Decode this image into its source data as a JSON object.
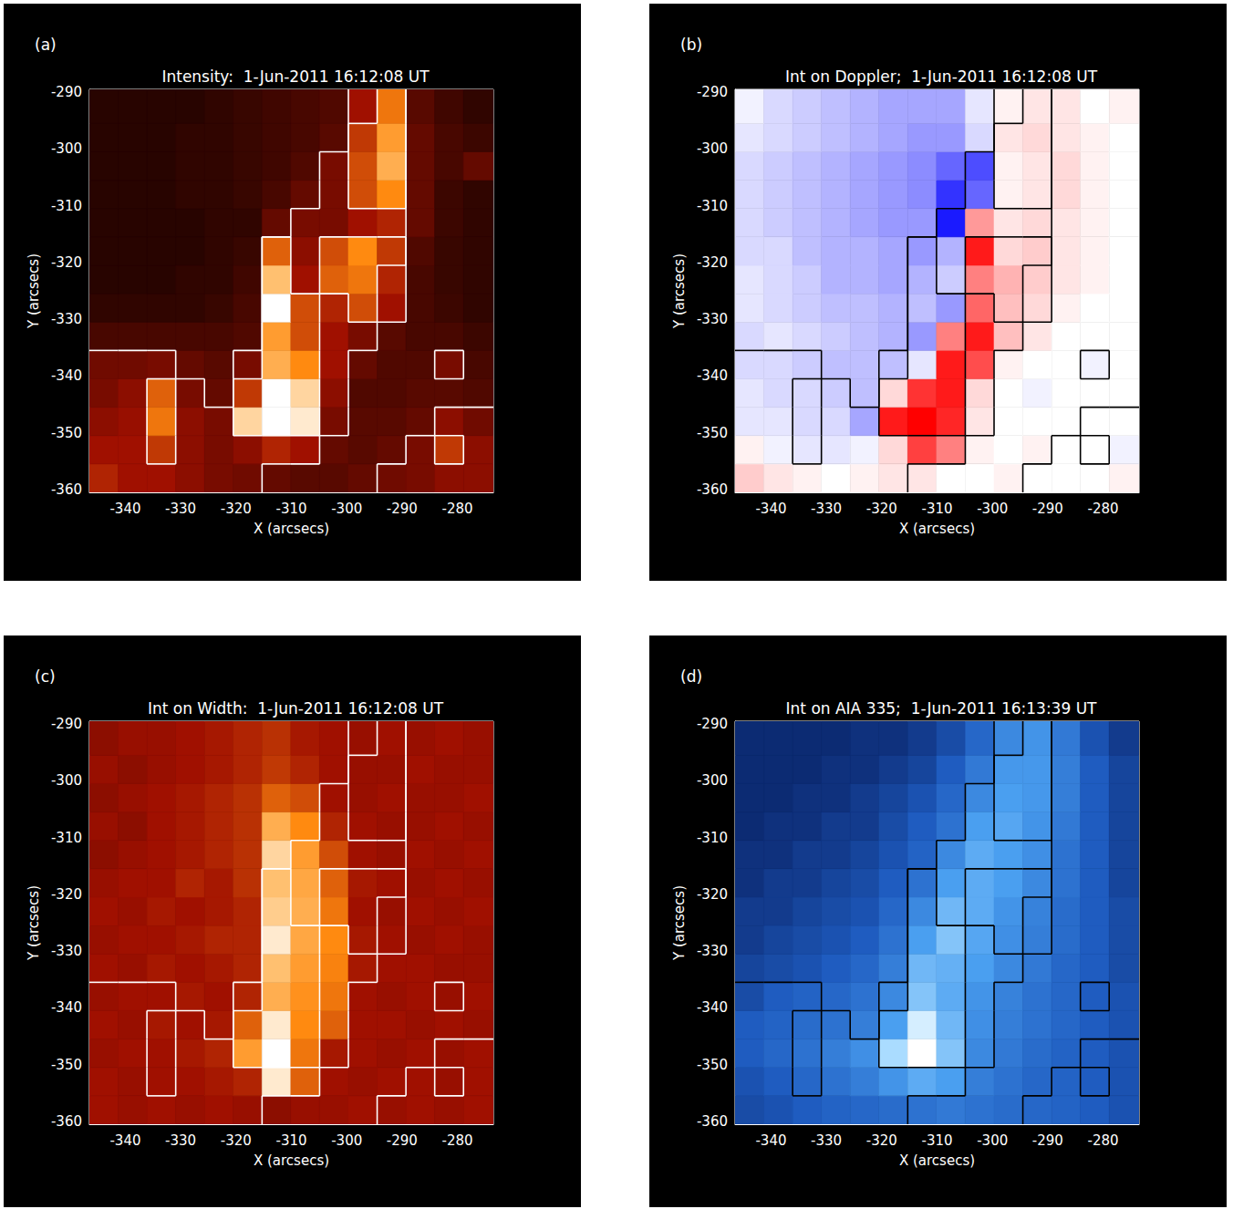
{
  "chart_data": [
    {
      "type": "heatmap",
      "panel": "(a)",
      "title": "Intensity:  1-Jun-2011 16:12:08 UT",
      "x_label": "X (arcsecs)",
      "y_label": "Y (arcsecs)",
      "color": "red temperature",
      "xlim": [
        -346.5,
        -273.5
      ],
      "ylim": [
        -360.5,
        -289.5
      ],
      "xticks": [
        -340,
        -330,
        -320,
        -310,
        -300,
        -290,
        -280
      ],
      "yticks": [
        -360,
        -350,
        -340,
        -330,
        -320,
        -310,
        -300,
        -290
      ],
      "x_edges": [
        -346.5,
        -341.3,
        -336.1,
        -330.9,
        -325.7,
        -320.5,
        -315.3,
        -310.1,
        -304.9,
        -299.7,
        -294.5,
        -289.3,
        -284.1,
        -278.9,
        -273.5
      ],
      "y_edges": [
        -360.5,
        -355.5,
        -350.5,
        -345.5,
        -340.5,
        -335.5,
        -330.5,
        -325.5,
        -320.5,
        -315.5,
        -310.5,
        -305.5,
        -300.5,
        -295.5,
        -289.5
      ],
      "color_range": [
        0,
        100
      ],
      "contour_levels": [
        28,
        50
      ],
      "cells": [
        [
          45,
          40,
          40,
          35,
          30,
          28,
          25,
          22,
          22,
          25,
          28,
          30,
          35,
          35
        ],
        [
          40,
          40,
          50,
          35,
          30,
          35,
          45,
          40,
          25,
          22,
          25,
          30,
          50,
          35
        ],
        [
          35,
          38,
          65,
          35,
          30,
          90,
          100,
          95,
          30,
          22,
          22,
          25,
          35,
          28
        ],
        [
          30,
          35,
          60,
          30,
          25,
          50,
          100,
          90,
          35,
          20,
          20,
          22,
          22,
          20
        ],
        [
          28,
          28,
          30,
          25,
          22,
          30,
          80,
          70,
          40,
          25,
          20,
          20,
          30,
          18
        ],
        [
          18,
          18,
          18,
          18,
          18,
          20,
          75,
          55,
          40,
          30,
          22,
          18,
          18,
          15
        ],
        [
          12,
          12,
          12,
          12,
          14,
          18,
          100,
          55,
          45,
          55,
          40,
          18,
          15,
          12
        ],
        [
          10,
          10,
          10,
          12,
          12,
          16,
          85,
          40,
          60,
          65,
          45,
          18,
          14,
          12
        ],
        [
          10,
          10,
          10,
          10,
          12,
          14,
          60,
          35,
          55,
          70,
          50,
          20,
          14,
          12
        ],
        [
          10,
          10,
          10,
          10,
          12,
          12,
          25,
          30,
          30,
          40,
          45,
          25,
          15,
          12
        ],
        [
          10,
          10,
          10,
          12,
          12,
          14,
          18,
          25,
          30,
          55,
          70,
          25,
          15,
          12
        ],
        [
          10,
          10,
          10,
          12,
          12,
          14,
          16,
          20,
          30,
          55,
          80,
          25,
          18,
          25
        ],
        [
          10,
          10,
          10,
          12,
          12,
          14,
          16,
          18,
          22,
          50,
          75,
          25,
          18,
          15
        ],
        [
          10,
          10,
          10,
          10,
          12,
          14,
          16,
          18,
          20,
          40,
          65,
          22,
          16,
          12
        ]
      ]
    },
    {
      "type": "heatmap",
      "panel": "(b)",
      "title": "Int on Doppler;  1-Jun-2011 16:12:08 UT",
      "x_label": "X (arcsecs)",
      "y_label": "Y (arcsecs)",
      "color": "blue-white-red",
      "xlim": [
        -346.5,
        -273.5
      ],
      "ylim": [
        -360.5,
        -289.5
      ],
      "xticks": [
        -340,
        -330,
        -320,
        -310,
        -300,
        -290,
        -280
      ],
      "yticks": [
        -360,
        -350,
        -340,
        -330,
        -320,
        -310,
        -300,
        -290
      ],
      "x_edges": [
        -346.5,
        -341.3,
        -336.1,
        -330.9,
        -325.7,
        -320.5,
        -315.3,
        -310.1,
        -304.9,
        -299.7,
        -294.5,
        -289.3,
        -284.1,
        -278.9,
        -273.5
      ],
      "y_edges": [
        -360.5,
        -355.5,
        -350.5,
        -345.5,
        -340.5,
        -335.5,
        -330.5,
        -325.5,
        -320.5,
        -315.5,
        -310.5,
        -305.5,
        -300.5,
        -295.5,
        -289.5
      ],
      "color_range": [
        -20,
        20
      ],
      "contour_levels": [
        28,
        50
      ],
      "cells": [
        [
          4,
          2,
          1,
          0,
          1,
          2,
          2,
          0,
          0,
          1,
          0,
          0,
          0,
          1
        ],
        [
          1,
          -1,
          -2,
          -2,
          -1,
          3,
          15,
          10,
          1,
          0,
          1,
          0,
          0,
          -1
        ],
        [
          -2,
          -2,
          -3,
          -3,
          -7,
          18,
          20,
          17,
          2,
          0,
          0,
          0,
          0,
          0
        ],
        [
          -2,
          -3,
          -3,
          -4,
          -5,
          3,
          16,
          18,
          3,
          0,
          -1,
          0,
          0,
          0
        ],
        [
          -3,
          -3,
          -4,
          -5,
          -5,
          -5,
          -2,
          18,
          14,
          1,
          0,
          0,
          -1,
          0
        ],
        [
          -3,
          -2,
          -3,
          -4,
          -5,
          -6,
          -8,
          10,
          18,
          5,
          2,
          0,
          0,
          0
        ],
        [
          -2,
          -3,
          -4,
          -5,
          -5,
          -6,
          -5,
          -8,
          12,
          5,
          3,
          1,
          0,
          0
        ],
        [
          -2,
          -3,
          -4,
          -6,
          -6,
          -7,
          -6,
          -4,
          10,
          6,
          4,
          2,
          1,
          0
        ],
        [
          -3,
          -3,
          -5,
          -6,
          -6,
          -7,
          -8,
          -6,
          18,
          3,
          4,
          2,
          1,
          0
        ],
        [
          -3,
          -4,
          -5,
          -6,
          -7,
          -8,
          -8,
          -18,
          8,
          2,
          3,
          2,
          1,
          0
        ],
        [
          -3,
          -4,
          -5,
          -6,
          -7,
          -8,
          -9,
          -16,
          -12,
          1,
          2,
          3,
          1,
          0
        ],
        [
          -3,
          -4,
          -5,
          -6,
          -7,
          -8,
          -9,
          -12,
          -14,
          1,
          2,
          3,
          1,
          0
        ],
        [
          -2,
          -3,
          -4,
          -5,
          -6,
          -7,
          -8,
          -8,
          -3,
          2,
          3,
          2,
          1,
          0
        ],
        [
          -1,
          -3,
          -4,
          -5,
          -6,
          -7,
          -7,
          -7,
          -2,
          1,
          2,
          2,
          0,
          1
        ]
      ]
    },
    {
      "type": "heatmap",
      "panel": "(c)",
      "title": "Int on Width:  1-Jun-2011 16:12:08 UT",
      "x_label": "X (arcsecs)",
      "y_label": "Y (arcsecs)",
      "color": "red temperature",
      "xlim": [
        -346.5,
        -273.5
      ],
      "ylim": [
        -360.5,
        -289.5
      ],
      "xticks": [
        -340,
        -330,
        -320,
        -310,
        -300,
        -290,
        -280
      ],
      "yticks": [
        -360,
        -350,
        -340,
        -330,
        -320,
        -310,
        -300,
        -290
      ],
      "x_edges": [
        -346.5,
        -341.3,
        -336.1,
        -330.9,
        -325.7,
        -320.5,
        -315.3,
        -310.1,
        -304.9,
        -299.7,
        -294.5,
        -289.3,
        -284.1,
        -278.9,
        -273.5
      ],
      "y_edges": [
        -360.5,
        -355.5,
        -350.5,
        -345.5,
        -340.5,
        -335.5,
        -330.5,
        -325.5,
        -320.5,
        -315.5,
        -310.5,
        -305.5,
        -300.5,
        -295.5,
        -289.5
      ],
      "color_range": [
        0,
        100
      ],
      "contour_levels": [
        28,
        50
      ],
      "cells": [
        [
          40,
          38,
          40,
          38,
          40,
          38,
          35,
          38,
          38,
          40,
          38,
          40,
          38,
          40
        ],
        [
          40,
          38,
          40,
          40,
          42,
          45,
          95,
          60,
          40,
          38,
          40,
          40,
          38,
          40
        ],
        [
          38,
          40,
          40,
          42,
          45,
          75,
          100,
          65,
          42,
          40,
          38,
          40,
          38,
          40
        ],
        [
          40,
          38,
          42,
          40,
          42,
          60,
          95,
          70,
          60,
          40,
          40,
          38,
          40,
          38
        ],
        [
          38,
          40,
          40,
          42,
          40,
          45,
          80,
          72,
          65,
          40,
          38,
          40,
          38,
          40
        ],
        [
          40,
          38,
          42,
          40,
          42,
          45,
          85,
          75,
          68,
          42,
          40,
          40,
          38,
          38
        ],
        [
          38,
          40,
          40,
          42,
          45,
          45,
          95,
          78,
          70,
          42,
          40,
          38,
          40,
          38
        ],
        [
          40,
          38,
          42,
          40,
          42,
          45,
          88,
          80,
          65,
          40,
          38,
          40,
          38,
          40
        ],
        [
          38,
          40,
          40,
          45,
          42,
          48,
          85,
          78,
          60,
          42,
          40,
          38,
          40,
          38
        ],
        [
          35,
          38,
          40,
          42,
          45,
          48,
          90,
          75,
          55,
          40,
          38,
          40,
          38,
          40
        ],
        [
          38,
          35,
          40,
          42,
          45,
          48,
          80,
          70,
          45,
          40,
          38,
          38,
          40,
          38
        ],
        [
          35,
          38,
          40,
          42,
          45,
          48,
          60,
          55,
          40,
          38,
          40,
          38,
          38,
          40
        ],
        [
          38,
          35,
          38,
          40,
          42,
          45,
          50,
          45,
          40,
          38,
          38,
          40,
          38,
          38
        ],
        [
          35,
          38,
          38,
          40,
          42,
          45,
          48,
          42,
          40,
          38,
          40,
          38,
          40,
          38
        ]
      ]
    },
    {
      "type": "heatmap",
      "panel": "(d)",
      "title": "Int on AIA 335;  1-Jun-2011 16:13:39 UT",
      "x_label": "X (arcsecs)",
      "y_label": "Y (arcsecs)",
      "color": "blue",
      "xlim": [
        -346.5,
        -273.5
      ],
      "ylim": [
        -360.5,
        -289.5
      ],
      "xticks": [
        -340,
        -330,
        -320,
        -310,
        -300,
        -290,
        -280
      ],
      "yticks": [
        -360,
        -350,
        -340,
        -330,
        -320,
        -310,
        -300,
        -290
      ],
      "x_edges": [
        -346.5,
        -341.3,
        -336.1,
        -330.9,
        -325.7,
        -320.5,
        -315.3,
        -310.1,
        -304.9,
        -299.7,
        -294.5,
        -289.3,
        -284.1,
        -278.9,
        -273.5
      ],
      "y_edges": [
        -360.5,
        -355.5,
        -350.5,
        -345.5,
        -340.5,
        -335.5,
        -330.5,
        -325.5,
        -320.5,
        -315.5,
        -310.5,
        -305.5,
        -300.5,
        -295.5,
        -289.5
      ],
      "color_range": [
        0,
        100
      ],
      "contour_levels": [
        28,
        50
      ],
      "cells": [
        [
          20,
          22,
          25,
          28,
          30,
          32,
          35,
          38,
          35,
          32,
          30,
          28,
          25,
          22
        ],
        [
          22,
          25,
          30,
          35,
          40,
          50,
          60,
          55,
          40,
          35,
          30,
          28,
          25,
          22
        ],
        [
          25,
          30,
          35,
          40,
          48,
          80,
          100,
          70,
          45,
          38,
          32,
          28,
          25,
          22
        ],
        [
          25,
          28,
          32,
          35,
          40,
          55,
          90,
          65,
          48,
          40,
          35,
          30,
          25,
          22
        ],
        [
          20,
          25,
          28,
          30,
          35,
          45,
          70,
          60,
          50,
          42,
          35,
          30,
          25,
          22
        ],
        [
          18,
          20,
          22,
          25,
          30,
          40,
          65,
          62,
          55,
          45,
          38,
          30,
          25,
          20
        ],
        [
          15,
          18,
          20,
          22,
          25,
          35,
          55,
          70,
          58,
          48,
          40,
          32,
          25,
          20
        ],
        [
          15,
          15,
          18,
          20,
          22,
          30,
          45,
          65,
          60,
          50,
          42,
          32,
          25,
          20
        ],
        [
          12,
          15,
          15,
          18,
          20,
          25,
          35,
          55,
          60,
          55,
          45,
          35,
          25,
          18
        ],
        [
          12,
          12,
          15,
          15,
          18,
          22,
          28,
          45,
          60,
          55,
          48,
          35,
          25,
          18
        ],
        [
          10,
          12,
          12,
          15,
          15,
          20,
          25,
          35,
          55,
          58,
          50,
          38,
          25,
          18
        ],
        [
          10,
          10,
          12,
          12,
          15,
          18,
          22,
          30,
          45,
          55,
          52,
          40,
          25,
          18
        ],
        [
          10,
          10,
          10,
          12,
          12,
          15,
          18,
          25,
          38,
          52,
          52,
          40,
          25,
          18
        ],
        [
          10,
          10,
          10,
          10,
          12,
          12,
          15,
          20,
          30,
          45,
          50,
          38,
          22,
          15
        ]
      ]
    }
  ]
}
